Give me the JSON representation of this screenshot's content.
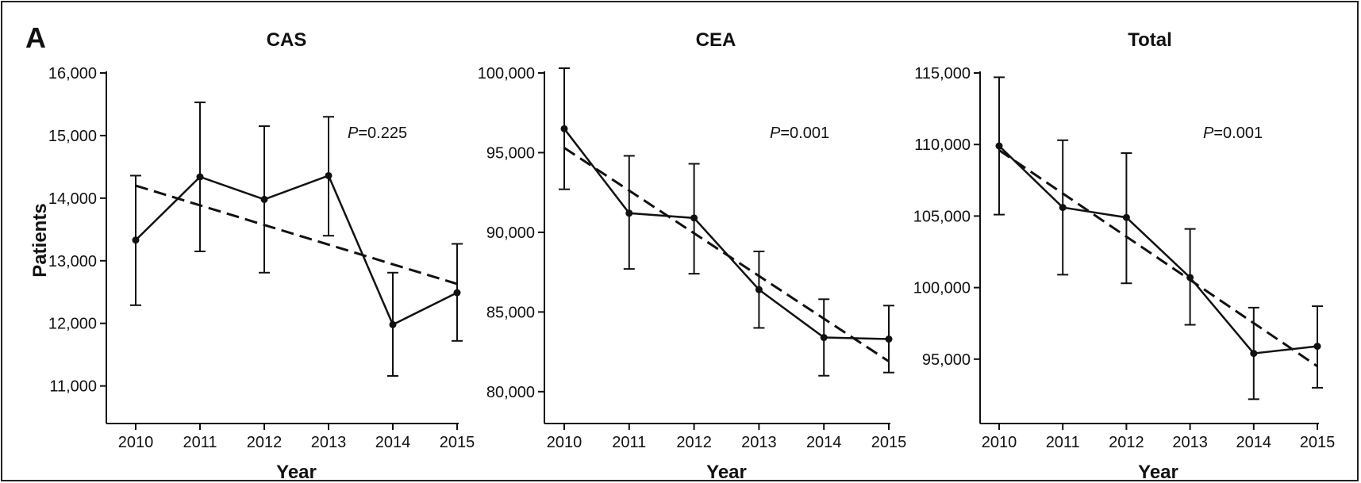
{
  "panel_label": "A",
  "chart_data": [
    {
      "type": "line",
      "title": "CAS",
      "xlabel": "Year",
      "ylabel": "Patients",
      "categories": [
        "2010",
        "2011",
        "2012",
        "2013",
        "2014",
        "2015"
      ],
      "ylim": [
        10400,
        16000
      ],
      "yticks": [
        11000,
        12000,
        13000,
        14000,
        15000,
        16000
      ],
      "ytick_labels": [
        "11,000",
        "12,000",
        "13,000",
        "14,000",
        "15,000",
        "16,000"
      ],
      "series": [
        {
          "values": [
            13330,
            14340,
            13980,
            14360,
            11980,
            12490
          ],
          "err_low": [
            12290,
            13150,
            12810,
            13400,
            11160,
            11720
          ],
          "err_high": [
            14360,
            15530,
            15150,
            15300,
            12810,
            13270
          ]
        }
      ],
      "trend": [
        14200,
        12630
      ],
      "annotation": {
        "prefix": "P",
        "text": "=0.225"
      },
      "grid": false
    },
    {
      "type": "line",
      "title": "CEA",
      "xlabel": "Year",
      "ylabel": "",
      "categories": [
        "2010",
        "2011",
        "2012",
        "2013",
        "2014",
        "2015"
      ],
      "ylim": [
        78000,
        100000
      ],
      "yticks": [
        80000,
        85000,
        90000,
        95000,
        100000
      ],
      "ytick_labels": [
        "80,000",
        "85,000",
        "90,000",
        "95,000",
        "100,000"
      ],
      "series": [
        {
          "values": [
            96500,
            91200,
            90900,
            86400,
            83400,
            83300
          ],
          "err_low": [
            92700,
            87700,
            87400,
            84000,
            81000,
            81200
          ],
          "err_high": [
            100300,
            94800,
            94300,
            88800,
            85800,
            85400
          ]
        }
      ],
      "trend": [
        95300,
        81900
      ],
      "annotation": {
        "prefix": "P",
        "text": "=0.001"
      },
      "grid": false
    },
    {
      "type": "line",
      "title": "Total",
      "xlabel": "Year",
      "ylabel": "",
      "categories": [
        "2010",
        "2011",
        "2012",
        "2013",
        "2014",
        "2015"
      ],
      "ylim": [
        90500,
        115000
      ],
      "yticks": [
        95000,
        100000,
        105000,
        110000,
        115000
      ],
      "ytick_labels": [
        "95,000",
        "100,000",
        "105,000",
        "110,000",
        "115,000"
      ],
      "series": [
        {
          "values": [
            109900,
            105600,
            104900,
            100700,
            95400,
            95900
          ],
          "err_low": [
            105100,
            100900,
            100300,
            97400,
            92200,
            93000
          ],
          "err_high": [
            114700,
            110300,
            109400,
            104100,
            98600,
            98700
          ]
        }
      ],
      "trend": [
        109600,
        94500
      ],
      "annotation": {
        "prefix": "P",
        "text": "=0.001"
      },
      "grid": false
    }
  ]
}
